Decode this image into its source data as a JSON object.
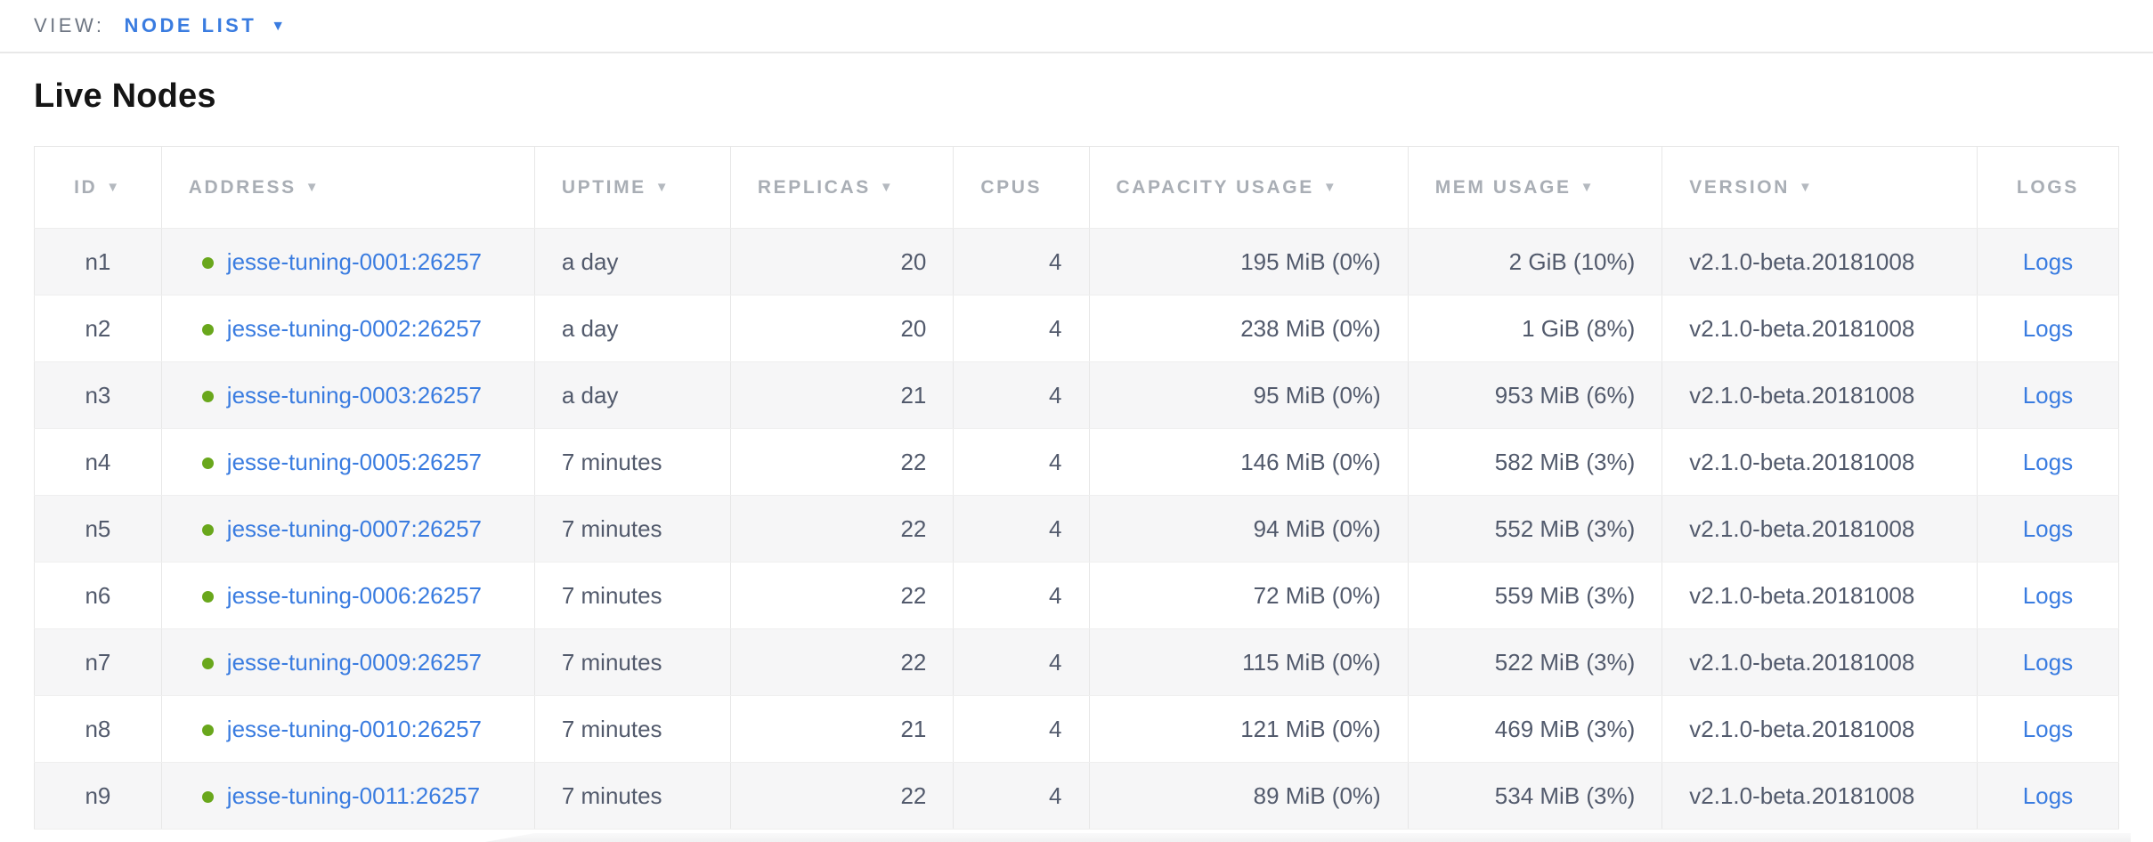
{
  "view_bar": {
    "label": "VIEW:",
    "selected": "NODE LIST"
  },
  "page": {
    "title": "Live Nodes"
  },
  "icons": {
    "sort_descending": "▼",
    "dropdown_caret": "▼",
    "live_status": "●"
  },
  "colors": {
    "link_blue": "#3a7ce0",
    "live_dot_green": "#69a71c",
    "header_gray": "#a9aeb5",
    "cell_text": "#525a6c",
    "row_shade": "#f6f6f7"
  },
  "table": {
    "columns": [
      {
        "key": "id",
        "label": "ID",
        "sortable": true
      },
      {
        "key": "address",
        "label": "ADDRESS",
        "sortable": true
      },
      {
        "key": "uptime",
        "label": "UPTIME",
        "sortable": true
      },
      {
        "key": "replicas",
        "label": "REPLICAS",
        "sortable": true
      },
      {
        "key": "cpus",
        "label": "CPUS",
        "sortable": false
      },
      {
        "key": "capacity",
        "label": "CAPACITY USAGE",
        "sortable": true
      },
      {
        "key": "mem",
        "label": "MEM USAGE",
        "sortable": true
      },
      {
        "key": "version",
        "label": "VERSION",
        "sortable": true
      },
      {
        "key": "logs",
        "label": "LOGS",
        "sortable": false
      }
    ],
    "rows": [
      {
        "id": "n1",
        "address": "jesse-tuning-0001:26257",
        "uptime": "a day",
        "replicas": "20",
        "cpus": "4",
        "capacity": "195 MiB (0%)",
        "mem": "2 GiB (10%)",
        "version": "v2.1.0-beta.20181008",
        "logs": "Logs"
      },
      {
        "id": "n2",
        "address": "jesse-tuning-0002:26257",
        "uptime": "a day",
        "replicas": "20",
        "cpus": "4",
        "capacity": "238 MiB (0%)",
        "mem": "1 GiB (8%)",
        "version": "v2.1.0-beta.20181008",
        "logs": "Logs"
      },
      {
        "id": "n3",
        "address": "jesse-tuning-0003:26257",
        "uptime": "a day",
        "replicas": "21",
        "cpus": "4",
        "capacity": "95 MiB (0%)",
        "mem": "953 MiB (6%)",
        "version": "v2.1.0-beta.20181008",
        "logs": "Logs"
      },
      {
        "id": "n4",
        "address": "jesse-tuning-0005:26257",
        "uptime": "7 minutes",
        "replicas": "22",
        "cpus": "4",
        "capacity": "146 MiB (0%)",
        "mem": "582 MiB (3%)",
        "version": "v2.1.0-beta.20181008",
        "logs": "Logs"
      },
      {
        "id": "n5",
        "address": "jesse-tuning-0007:26257",
        "uptime": "7 minutes",
        "replicas": "22",
        "cpus": "4",
        "capacity": "94 MiB (0%)",
        "mem": "552 MiB (3%)",
        "version": "v2.1.0-beta.20181008",
        "logs": "Logs"
      },
      {
        "id": "n6",
        "address": "jesse-tuning-0006:26257",
        "uptime": "7 minutes",
        "replicas": "22",
        "cpus": "4",
        "capacity": "72 MiB (0%)",
        "mem": "559 MiB (3%)",
        "version": "v2.1.0-beta.20181008",
        "logs": "Logs"
      },
      {
        "id": "n7",
        "address": "jesse-tuning-0009:26257",
        "uptime": "7 minutes",
        "replicas": "22",
        "cpus": "4",
        "capacity": "115 MiB (0%)",
        "mem": "522 MiB (3%)",
        "version": "v2.1.0-beta.20181008",
        "logs": "Logs"
      },
      {
        "id": "n8",
        "address": "jesse-tuning-0010:26257",
        "uptime": "7 minutes",
        "replicas": "21",
        "cpus": "4",
        "capacity": "121 MiB (0%)",
        "mem": "469 MiB (3%)",
        "version": "v2.1.0-beta.20181008",
        "logs": "Logs"
      },
      {
        "id": "n9",
        "address": "jesse-tuning-0011:26257",
        "uptime": "7 minutes",
        "replicas": "22",
        "cpus": "4",
        "capacity": "89 MiB (0%)",
        "mem": "534 MiB (3%)",
        "version": "v2.1.0-beta.20181008",
        "logs": "Logs"
      }
    ]
  }
}
